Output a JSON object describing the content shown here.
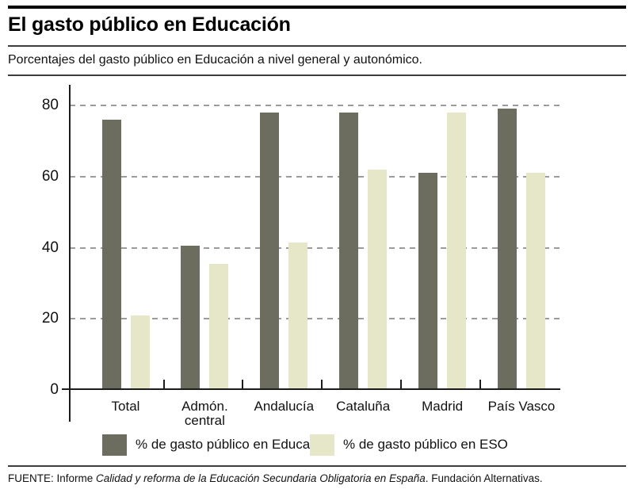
{
  "header": {
    "title": "El gasto público en Educación",
    "subtitle": "Porcentajes del gasto público en Educación a nivel general y autonómico."
  },
  "chart_data": {
    "type": "bar",
    "title": "El gasto público en Educación",
    "subtitle": "Porcentajes del gasto público en Educación a nivel general y autonómico.",
    "categories": [
      "Total",
      "Admón.\ncentral",
      "Andalucía",
      "Cataluña",
      "Madrid",
      "País Vasco"
    ],
    "series": [
      {
        "name": "% de gasto público en Educación",
        "color": "#6d6d5f",
        "values": [
          76,
          40.5,
          78,
          78,
          61,
          79
        ]
      },
      {
        "name": "% de gasto público en ESO",
        "color": "#e6e6c9",
        "values": [
          21,
          35.5,
          41.5,
          62,
          78,
          61
        ]
      }
    ],
    "ylabel": "",
    "xlabel": "",
    "ylim": [
      0,
      85
    ],
    "yticks": [
      0,
      20,
      40,
      60,
      80
    ],
    "grid": "horizontal-dashed",
    "grid_color": "#9b9b9b",
    "axis_color": "#1c1c1c",
    "legend_position": "bottom"
  },
  "footer": {
    "source_prefix": "FUENTE: Informe ",
    "source_italic": "Calidad y reforma de la Educación Secundaria Obligatoria en España",
    "source_suffix": ". Fundación Alternativas."
  }
}
